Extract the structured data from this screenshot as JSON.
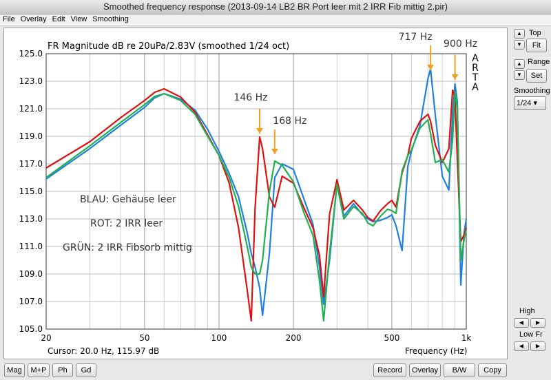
{
  "window": {
    "title": "Smoothed frequency response (2013-09-14 LB2 BR Port leer  mit 2 IRR Fib mittig 2.pir)"
  },
  "menu": [
    "File",
    "Overlay",
    "Edit",
    "View",
    "Smoothing"
  ],
  "side_panel": {
    "top_label": "Top",
    "fit_button": "Fit",
    "range_label": "Range",
    "set_button": "Set",
    "smoothing_label": "Smoothing",
    "smoothing_value": "1/24",
    "high_label": "High",
    "low_label": "Low Fr"
  },
  "bottom_left_buttons": [
    "Mag",
    "M+P",
    "Ph",
    "Gd"
  ],
  "bottom_right_buttons": [
    "Record",
    "Overlay",
    "B/W",
    "Copy"
  ],
  "chart_data": {
    "type": "line",
    "title": "FR Magnitude dB re 20uPa/2.83V (smoothed 1/24 oct)",
    "brand": "ARTA",
    "x_label": "Frequency (Hz)",
    "cursor": "Cursor: 20.0 Hz, 115.97 dB",
    "x_scale": "log",
    "grid": true,
    "xlim": [
      20,
      1000
    ],
    "ylim": [
      105,
      125
    ],
    "xticks": [
      20,
      50,
      100,
      200,
      500,
      {
        "value": 1000,
        "label": "1k"
      }
    ],
    "x_minor_grid": [
      30,
      40,
      60,
      70,
      80,
      90,
      300,
      400,
      600,
      700,
      800,
      900
    ],
    "yticks": [
      {
        "value": 105,
        "label": "105.0"
      },
      {
        "value": 107,
        "label": "107.0"
      },
      {
        "value": 109,
        "label": "109.0"
      },
      {
        "value": 111,
        "label": "111.0"
      },
      {
        "value": 113,
        "label": "113.0"
      },
      {
        "value": 115,
        "label": "115.0"
      },
      {
        "value": 117,
        "label": "117.0"
      },
      {
        "value": 119,
        "label": "119.0"
      },
      {
        "value": 121,
        "label": "121.0"
      },
      {
        "value": 123,
        "label": "123.0"
      },
      {
        "value": 125,
        "label": "125.0"
      }
    ],
    "notes": [
      "BLAU: Gehäuse leer",
      "ROT: 2 IRR leer",
      "GRÜN: 2 IRR Fibsorb mittig"
    ],
    "annotations": [
      {
        "label": "146 Hz",
        "x": 146,
        "y": 119.2,
        "color": "#f0a020"
      },
      {
        "label": "168 Hz",
        "x": 168,
        "y": 117.7,
        "color": "#f0a020"
      },
      {
        "label": "717 Hz",
        "x": 717,
        "y": 123.8,
        "color": "#f0a020"
      },
      {
        "label": "900 Hz",
        "x": 900,
        "y": 123.1,
        "color": "#f0a020"
      }
    ],
    "x": [
      20,
      30,
      40,
      50,
      55,
      60,
      70,
      80,
      90,
      100,
      110,
      120,
      130,
      135,
      140,
      146,
      150,
      160,
      168,
      180,
      200,
      220,
      240,
      255,
      265,
      280,
      300,
      320,
      350,
      380,
      400,
      420,
      450,
      480,
      500,
      520,
      550,
      580,
      600,
      650,
      700,
      717,
      750,
      800,
      850,
      880,
      900,
      920,
      950,
      980,
      1000
    ],
    "series": [
      {
        "color": "#1e80e0",
        "values": [
          115.9,
          118.1,
          119.8,
          121.1,
          121.8,
          122.1,
          121.7,
          120.9,
          119.5,
          117.9,
          116.3,
          114.6,
          112.0,
          110.5,
          109.5,
          108.0,
          106.0,
          110.5,
          116.0,
          117.0,
          116.6,
          114.5,
          112.6,
          109.5,
          106.8,
          110.0,
          115.6,
          113.2,
          114.1,
          113.3,
          113.0,
          112.8,
          112.9,
          113.1,
          113.3,
          112.5,
          110.7,
          116.8,
          117.9,
          119.8,
          123.2,
          123.9,
          120.5,
          116.1,
          115.1,
          120.6,
          122.8,
          121.5,
          108.2,
          112.0,
          113.0
        ]
      },
      {
        "color": "#e01010",
        "values": [
          116.7,
          118.6,
          120.35,
          121.6,
          122.2,
          122.45,
          121.85,
          120.75,
          119.1,
          117.6,
          115.6,
          112.35,
          107.85,
          105.6,
          113.85,
          118.95,
          118.1,
          114.6,
          113.85,
          116.1,
          115.6,
          113.85,
          112.35,
          110.35,
          107.35,
          113.35,
          115.85,
          113.65,
          114.35,
          113.65,
          113.1,
          112.85,
          113.6,
          114.1,
          114.35,
          113.85,
          116.35,
          117.6,
          118.85,
          120.1,
          120.6,
          120.1,
          118.35,
          117.1,
          118.1,
          122.35,
          121.85,
          117.35,
          111.35,
          111.85,
          112.35
        ]
      },
      {
        "color": "#20b050",
        "values": [
          116.0,
          118.3,
          120.0,
          121.3,
          121.9,
          122.1,
          121.6,
          120.6,
          119.0,
          117.6,
          116.0,
          113.9,
          111.0,
          109.5,
          109.0,
          109.0,
          110.0,
          115.0,
          117.2,
          116.9,
          115.7,
          113.5,
          111.8,
          108.5,
          105.6,
          110.5,
          115.5,
          113.0,
          113.9,
          113.4,
          112.7,
          112.5,
          113.2,
          113.7,
          113.6,
          113.4,
          116.5,
          117.6,
          118.0,
          119.6,
          120.2,
          119.2,
          117.1,
          117.3,
          116.4,
          118.7,
          122.2,
          121.0,
          110.0,
          111.5,
          112.2
        ]
      }
    ]
  }
}
